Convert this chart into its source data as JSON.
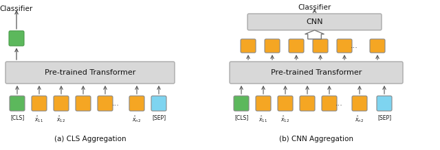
{
  "fig_width": 6.4,
  "fig_height": 2.19,
  "dpi": 100,
  "bg_color": "#ffffff",
  "orange": "#F5A623",
  "green": "#5CB85C",
  "cyan": "#7ED4F0",
  "gray_box": "#D8D8D8",
  "arrow_color": "#555555",
  "text_color": "#111111",
  "caption_left": "(a) CLS Aggregation",
  "caption_right": "(b) CNN Aggregation",
  "transformer_label": "Pre-trained Transformer",
  "cnn_label": "CNN",
  "classifier_label": "Classifier",
  "cls_label": "[CLS]",
  "sep_label": "[SEP]",
  "x11_label": "$\\hat{x}_{11}$",
  "x12_label": "$\\hat{x}_{12}$",
  "xn2_label": "$\\hat{x}_{n2}$"
}
